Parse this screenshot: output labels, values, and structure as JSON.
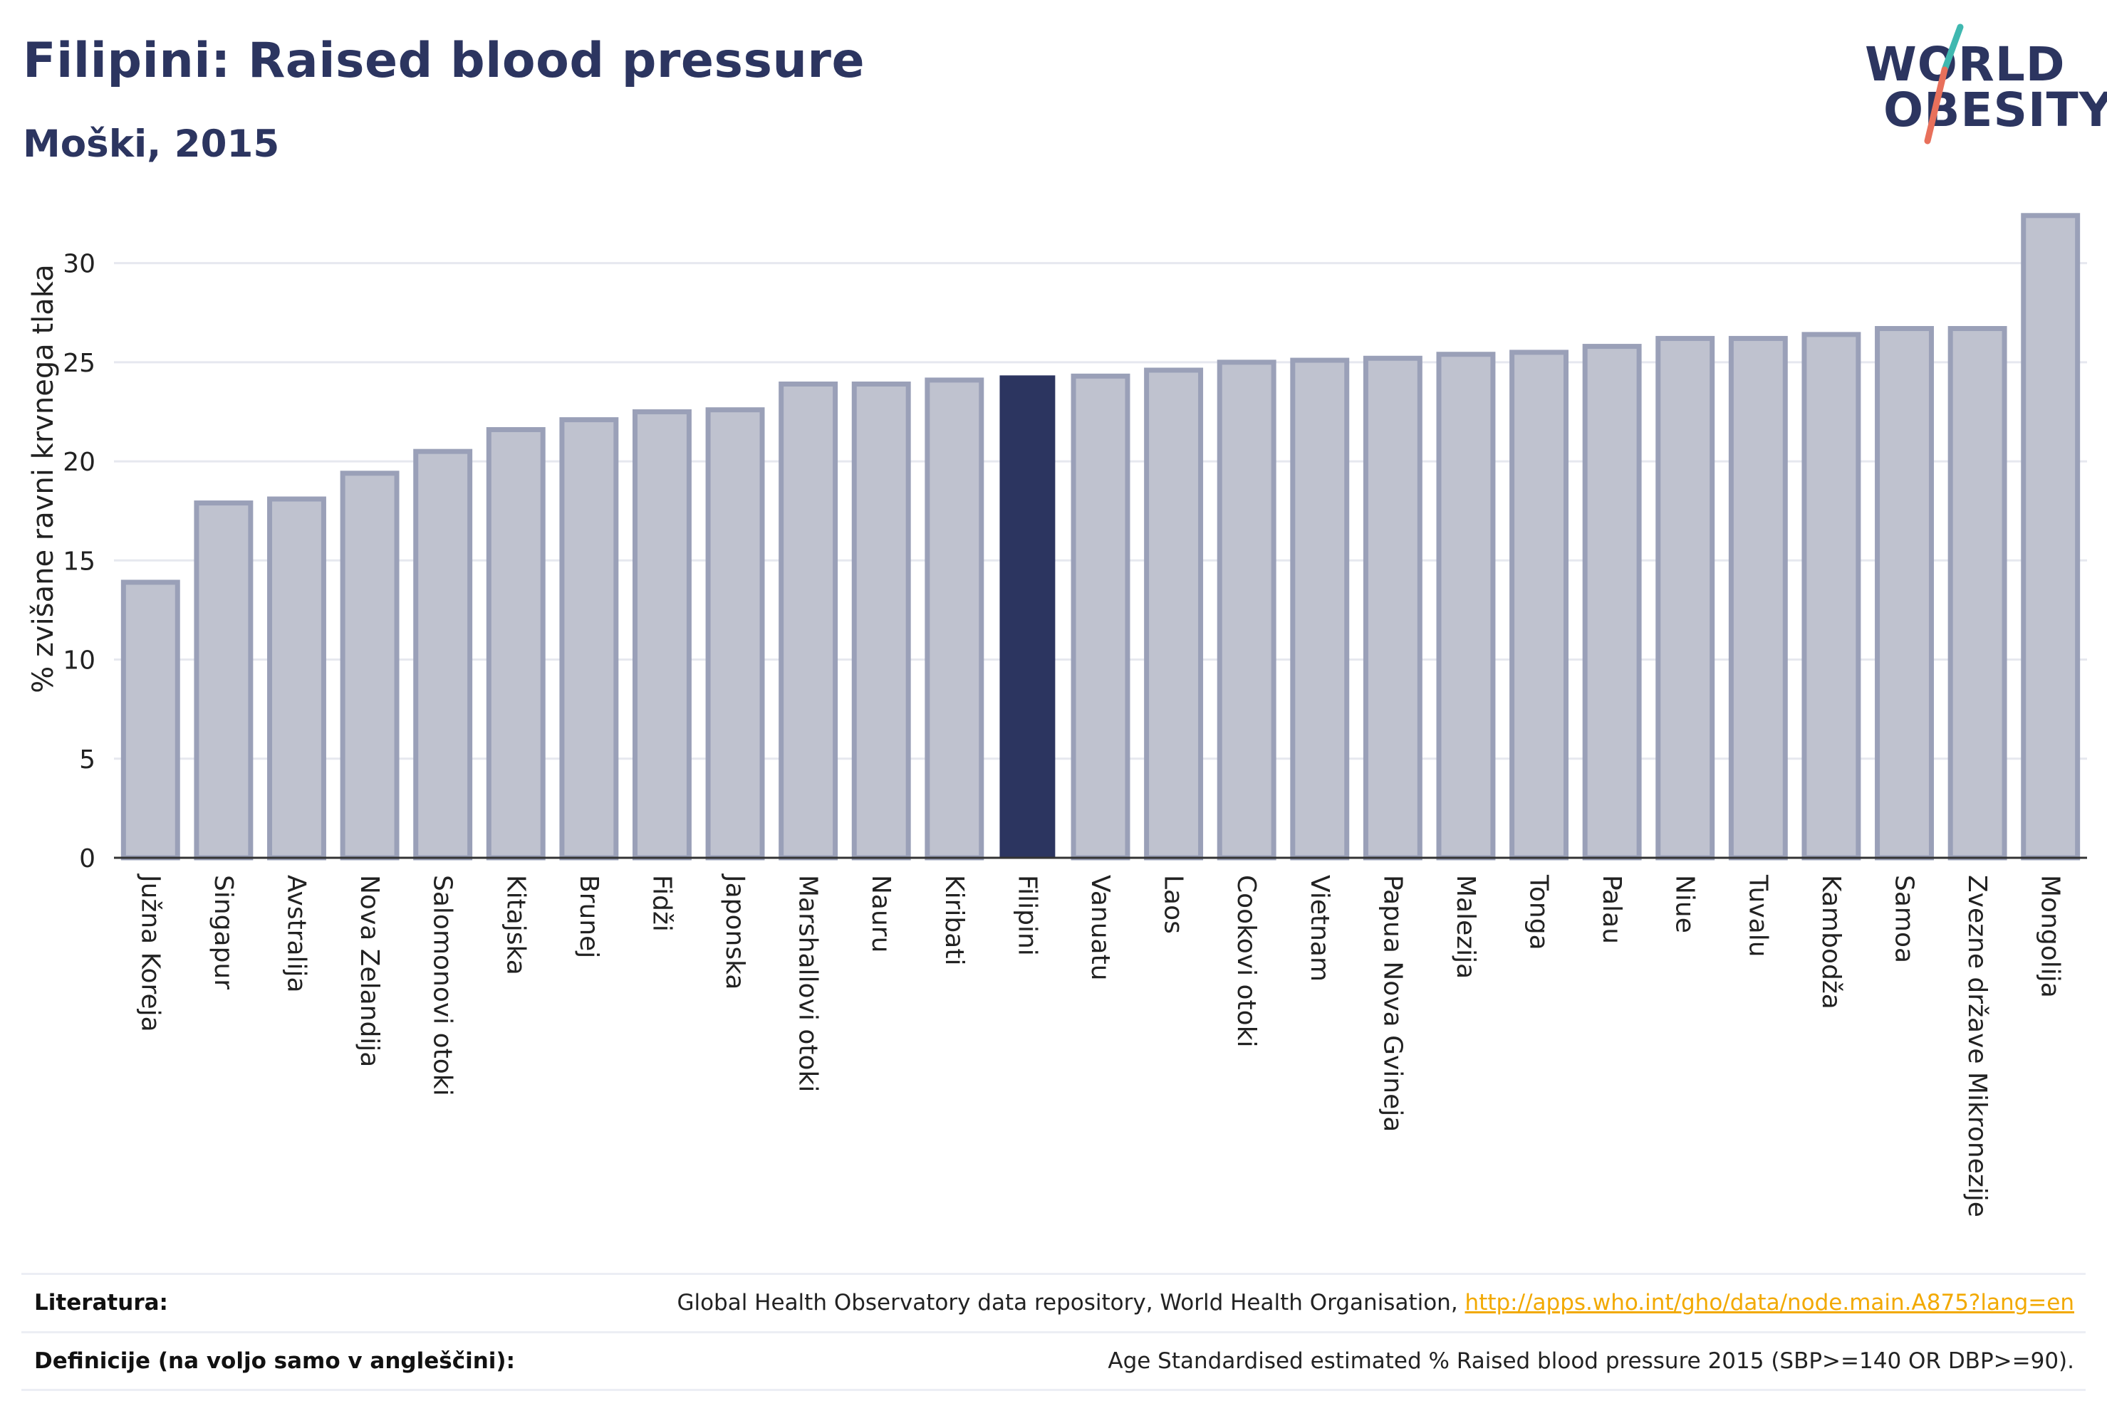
{
  "header": {
    "title": "Filipini: Raised blood pressure",
    "subtitle": "Moški, 2015"
  },
  "logo": {
    "line1": "WORLD",
    "line2": "OBESITY",
    "accent_teal": "#3fb8b0",
    "accent_red": "#e8705b"
  },
  "colors": {
    "bar": "#bfc2cf",
    "bar_border": "#9aa0b8",
    "highlight": "#2c3560",
    "grid": "#e6e8ef",
    "axis": "#333333"
  },
  "chart_data": {
    "type": "bar",
    "ylabel": "% zvišane ravni krvnega tlaka",
    "xlabel": "",
    "ylim": [
      0,
      32.5
    ],
    "yticks": [
      0,
      5,
      10,
      15,
      20,
      25,
      30
    ],
    "highlight": "Filipini",
    "grid": true,
    "categories": [
      "Južna Koreja",
      "Singapur",
      "Avstralija",
      "Nova Zelandija",
      "Salomonovi otoki",
      "Kitajska",
      "Brunej",
      "Fidži",
      "Japonska",
      "Marshallovi otoki",
      "Nauru",
      "Kiribati",
      "Filipini",
      "Vanuatu",
      "Laos",
      "Cookovi otoki",
      "Vietnam",
      "Papua Nova Gvineja",
      "Malezija",
      "Tonga",
      "Palau",
      "Niue",
      "Tuvalu",
      "Kambodža",
      "Samoa",
      "Zvezne države Mikronezije",
      "Mongolija"
    ],
    "values": [
      13.9,
      17.9,
      18.1,
      19.4,
      20.5,
      21.6,
      22.1,
      22.5,
      22.6,
      23.9,
      23.9,
      24.1,
      24.3,
      24.3,
      24.6,
      25.0,
      25.1,
      25.2,
      25.4,
      25.5,
      25.8,
      26.2,
      26.2,
      26.4,
      26.7,
      26.7,
      32.4
    ]
  },
  "footer": {
    "references_label": "Literatura:",
    "references_text": "Global Health Observatory data repository, World Health Organisation, ",
    "references_link": "http://apps.who.int/gho/data/node.main.A875?lang=en",
    "definitions_label": "Definicije (na voljo samo v angleščini):",
    "definitions_text": "Age Standardised estimated % Raised blood pressure 2015 (SBP>=140 OR DBP>=90)."
  }
}
